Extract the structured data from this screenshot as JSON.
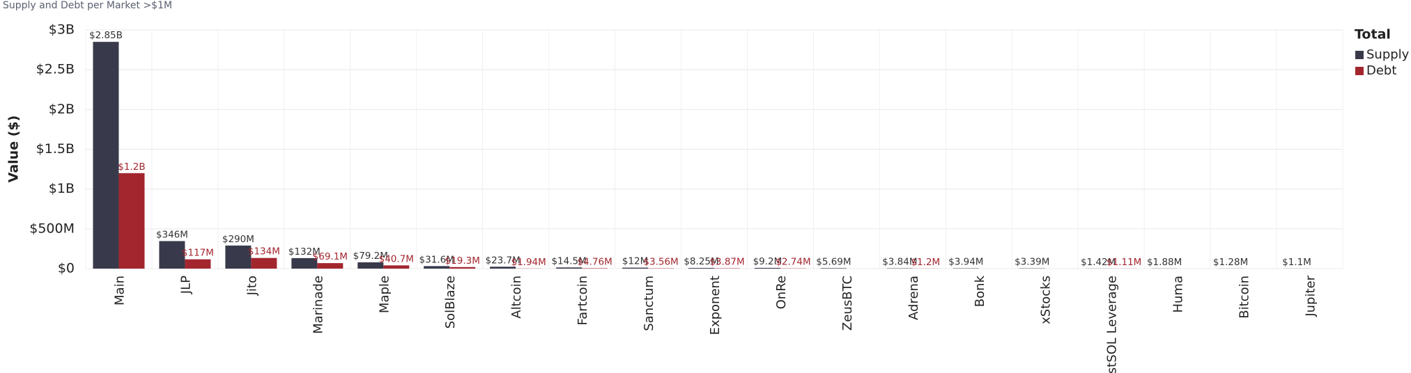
{
  "chart_data": {
    "type": "bar",
    "title": "Supply and Debt per Market >$1M",
    "y_label": "Value ($)",
    "legend_title": "Total",
    "legend": "right",
    "grid": true,
    "categories": [
      "Main",
      "JLP",
      "Jito",
      "Marinade",
      "Maple",
      "SolBlaze",
      "Altcoin",
      "Fartcoin",
      "Sanctum",
      "Exponent",
      "OnRe",
      "ZeusBTC",
      "Adrena",
      "Bonk",
      "xStocks",
      "rstSOL Leverage",
      "Huma",
      "Bitcoin",
      "Jupiter"
    ],
    "series": [
      {
        "name": "Supply",
        "color": "#383a4b",
        "values": [
          2850000000,
          346000000,
          290000000,
          132000000,
          79200000,
          31600000,
          23700000,
          14500000,
          12000000,
          8250000,
          9200000,
          5690000,
          3840000,
          3940000,
          3390000,
          1420000,
          1880000,
          1280000,
          1100000
        ],
        "value_labels": [
          "$2.85B",
          "$346M",
          "$290M",
          "$132M",
          "$79.2M",
          "$31.6M",
          "$23.7M",
          "$14.5M",
          "$12M",
          "$8.25M",
          "$9.2M",
          "$5.69M",
          "$3.84M",
          "$3.94M",
          "$3.39M",
          "$1.42M",
          "$1.88M",
          "$1.28M",
          "$1.1M"
        ]
      },
      {
        "name": "Debt",
        "color": "#a3262f",
        "values": [
          1200000000,
          117000000,
          134000000,
          69100000,
          40700000,
          19300000,
          1940000,
          4760000,
          3560000,
          3870000,
          2740000,
          null,
          1200000,
          null,
          null,
          1110000,
          null,
          null,
          null
        ],
        "value_labels": [
          "$1.2B",
          "$117M",
          "$134M",
          "$69.1M",
          "$40.7M",
          "$19.3M",
          "$1.94M",
          "$4.76M",
          "$3.56M",
          "$3.87M",
          "$2.74M",
          null,
          "$1.2M",
          null,
          null,
          "$1.11M",
          null,
          null,
          null
        ]
      }
    ],
    "ylim": [
      0,
      3000000000
    ],
    "yticks": [
      {
        "value": 0,
        "label": "$0"
      },
      {
        "value": 500000000,
        "label": "$500M"
      },
      {
        "value": 1000000000,
        "label": "$1B"
      },
      {
        "value": 1500000000,
        "label": "$1.5B"
      },
      {
        "value": 2000000000,
        "label": "$2B"
      },
      {
        "value": 2500000000,
        "label": "$2.5B"
      },
      {
        "value": 3000000000,
        "label": "$3B"
      }
    ]
  }
}
